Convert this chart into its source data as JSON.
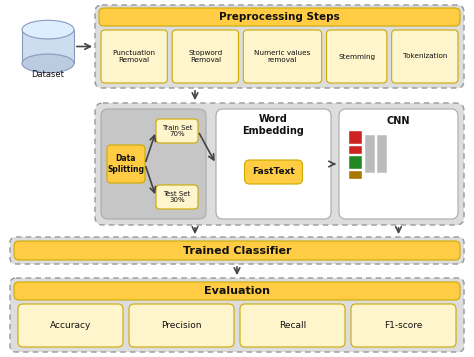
{
  "bg_color": "#ffffff",
  "dashed_border_color": "#999999",
  "yellow_fill": "#FFCC44",
  "yellow_header": "#FFCC44",
  "cream_fill": "#FFF5CC",
  "light_gray_section": "#DDDDDD",
  "white_fill": "#FFFFFF",
  "text_color": "#111111",
  "arrow_color": "#444444",
  "preprocessing_title": "Preprocessing Steps",
  "preprocessing_boxes": [
    "Punctuation\nRemoval",
    "Stopword\nRemoval",
    "Numeric values\nremoval",
    "Stemming",
    "Tokenization"
  ],
  "dataset_label": "Dataset",
  "data_splitting_label": "Data\nSplitting",
  "train_set_label": "Train Set\n70%",
  "test_set_label": "Test Set\n30%",
  "word_embedding_label": "Word\nEmbedding",
  "fasttext_label": "FastText",
  "cnn_label": "CNN",
  "trained_classifier_label": "Trained Classifier",
  "evaluation_label": "Evaluation",
  "evaluation_boxes": [
    "Accuracy",
    "Precision",
    "Recall",
    "F1-score"
  ],
  "figw": 4.74,
  "figh": 3.57,
  "dpi": 100
}
